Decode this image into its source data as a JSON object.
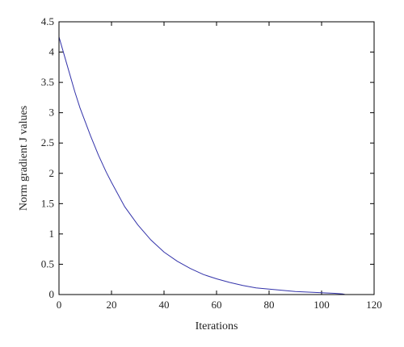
{
  "chart_data": {
    "type": "line",
    "title": "",
    "xlabel": "Iterations",
    "ylabel": "Norm gradient J values",
    "xlim": [
      0,
      120
    ],
    "ylim": [
      0,
      4.5
    ],
    "xticks": [
      0,
      20,
      40,
      60,
      80,
      100,
      120
    ],
    "yticks": [
      0,
      0.5,
      1,
      1.5,
      2,
      2.5,
      3,
      3.5,
      4,
      4.5
    ],
    "xtick_labels": [
      "0",
      "20",
      "40",
      "60",
      "80",
      "100",
      "120"
    ],
    "ytick_labels": [
      "0",
      "0.5",
      "1",
      "1.5",
      "2",
      "2.5",
      "3",
      "3.5",
      "4",
      "4.5"
    ],
    "grid": false,
    "legend": "none",
    "series": [
      {
        "color": "#3333aa",
        "x": [
          0,
          2,
          4,
          6,
          8,
          10,
          12,
          15,
          18,
          20,
          25,
          30,
          35,
          40,
          45,
          50,
          55,
          60,
          65,
          70,
          75,
          80,
          85,
          90,
          95,
          100,
          105,
          108,
          109
        ],
        "y": [
          4.25,
          3.95,
          3.65,
          3.35,
          3.08,
          2.85,
          2.62,
          2.3,
          2.02,
          1.85,
          1.45,
          1.15,
          0.9,
          0.7,
          0.55,
          0.43,
          0.33,
          0.26,
          0.2,
          0.15,
          0.11,
          0.09,
          0.07,
          0.05,
          0.04,
          0.03,
          0.02,
          0.01,
          0.0
        ]
      }
    ]
  }
}
